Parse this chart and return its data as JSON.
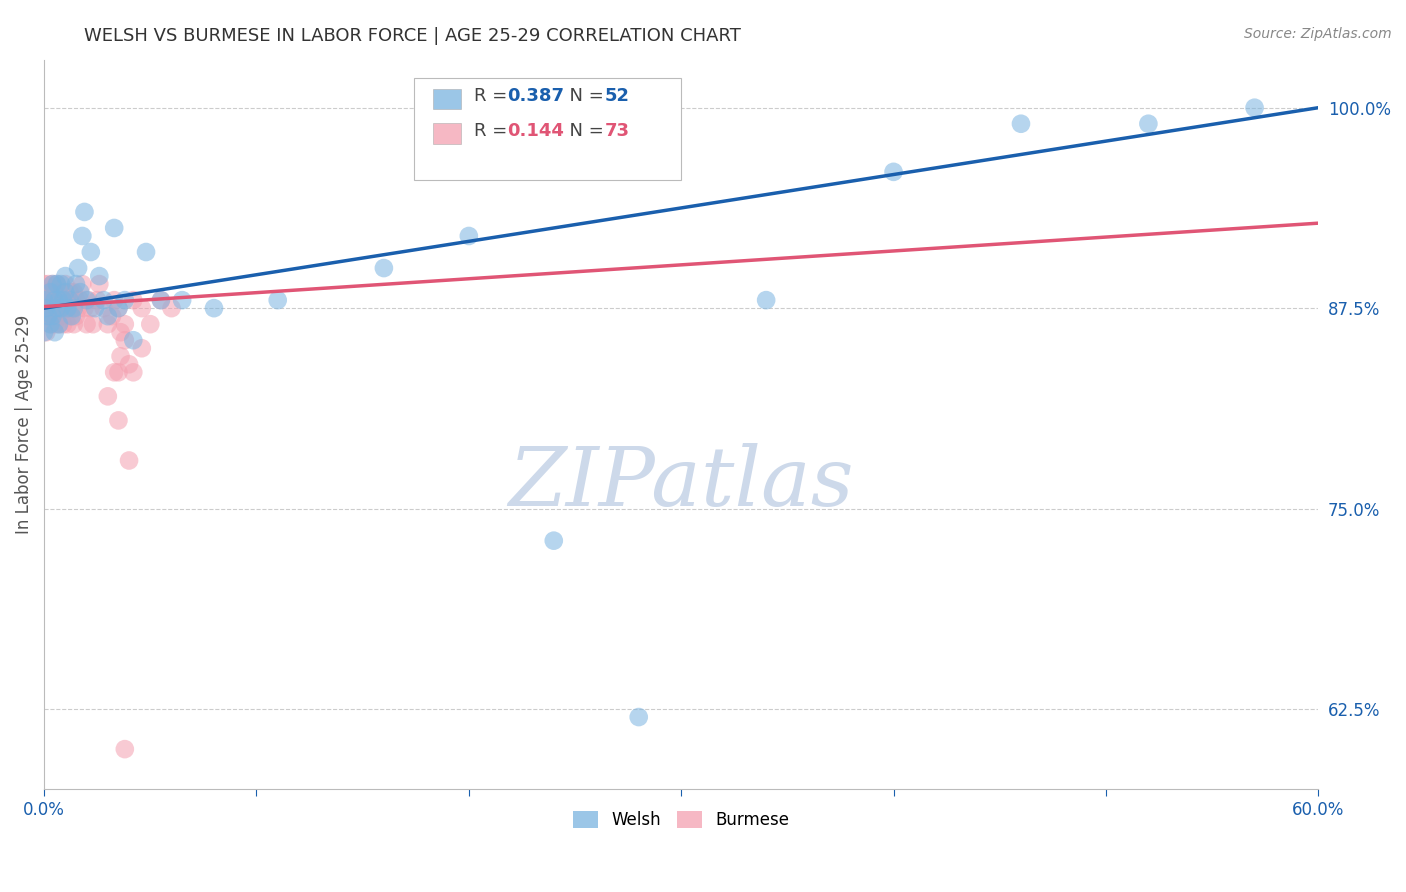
{
  "title": "WELSH VS BURMESE IN LABOR FORCE | AGE 25-29 CORRELATION CHART",
  "source": "Source: ZipAtlas.com",
  "ylabel": "In Labor Force | Age 25-29",
  "xlim": [
    0.0,
    0.6
  ],
  "ylim": [
    0.575,
    1.03
  ],
  "ytick_positions": [
    0.625,
    0.75,
    0.875,
    1.0
  ],
  "ytick_labels": [
    "62.5%",
    "75.0%",
    "87.5%",
    "100.0%"
  ],
  "welsh_color": "#7ab3e0",
  "burmese_color": "#f4a0b0",
  "welsh_line_color": "#1a5fad",
  "burmese_line_color": "#e05575",
  "welsh_R": 0.387,
  "welsh_N": 52,
  "burmese_R": 0.144,
  "burmese_N": 73,
  "welsh_scatter_x": [
    0.0,
    0.0,
    0.001,
    0.002,
    0.003,
    0.003,
    0.004,
    0.004,
    0.005,
    0.005,
    0.006,
    0.006,
    0.007,
    0.007,
    0.008,
    0.008,
    0.009,
    0.01,
    0.01,
    0.011,
    0.012,
    0.013,
    0.014,
    0.015,
    0.016,
    0.017,
    0.018,
    0.019,
    0.02,
    0.022,
    0.024,
    0.026,
    0.028,
    0.03,
    0.033,
    0.035,
    0.038,
    0.042,
    0.048,
    0.055,
    0.065,
    0.08,
    0.11,
    0.16,
    0.2,
    0.24,
    0.28,
    0.34,
    0.4,
    0.46,
    0.52,
    0.57
  ],
  "welsh_scatter_y": [
    0.88,
    0.86,
    0.875,
    0.87,
    0.885,
    0.865,
    0.87,
    0.89,
    0.86,
    0.88,
    0.875,
    0.89,
    0.865,
    0.88,
    0.875,
    0.89,
    0.88,
    0.885,
    0.895,
    0.875,
    0.88,
    0.87,
    0.875,
    0.89,
    0.9,
    0.885,
    0.92,
    0.935,
    0.88,
    0.91,
    0.875,
    0.895,
    0.88,
    0.87,
    0.925,
    0.875,
    0.88,
    0.855,
    0.91,
    0.88,
    0.88,
    0.875,
    0.88,
    0.9,
    0.92,
    0.73,
    0.62,
    0.88,
    0.96,
    0.99,
    0.99,
    1.0
  ],
  "burmese_scatter_x": [
    0.0,
    0.0,
    0.0,
    0.001,
    0.001,
    0.001,
    0.002,
    0.002,
    0.002,
    0.003,
    0.003,
    0.003,
    0.004,
    0.004,
    0.004,
    0.005,
    0.005,
    0.005,
    0.006,
    0.006,
    0.006,
    0.007,
    0.007,
    0.008,
    0.008,
    0.008,
    0.009,
    0.009,
    0.01,
    0.01,
    0.011,
    0.011,
    0.012,
    0.012,
    0.013,
    0.013,
    0.014,
    0.014,
    0.015,
    0.015,
    0.016,
    0.017,
    0.018,
    0.019,
    0.02,
    0.021,
    0.022,
    0.023,
    0.025,
    0.026,
    0.028,
    0.03,
    0.033,
    0.035,
    0.038,
    0.042,
    0.046,
    0.05,
    0.055,
    0.06,
    0.033,
    0.036,
    0.038,
    0.042,
    0.046,
    0.03,
    0.035,
    0.04,
    0.032,
    0.036,
    0.038,
    0.035,
    0.04
  ],
  "burmese_scatter_y": [
    0.88,
    0.87,
    0.89,
    0.86,
    0.875,
    0.885,
    0.87,
    0.88,
    0.89,
    0.875,
    0.865,
    0.885,
    0.87,
    0.88,
    0.89,
    0.875,
    0.865,
    0.885,
    0.87,
    0.88,
    0.89,
    0.875,
    0.865,
    0.885,
    0.87,
    0.88,
    0.875,
    0.865,
    0.88,
    0.89,
    0.875,
    0.865,
    0.885,
    0.87,
    0.88,
    0.875,
    0.865,
    0.885,
    0.87,
    0.88,
    0.875,
    0.88,
    0.89,
    0.875,
    0.865,
    0.88,
    0.875,
    0.865,
    0.88,
    0.89,
    0.875,
    0.865,
    0.88,
    0.875,
    0.865,
    0.88,
    0.875,
    0.865,
    0.88,
    0.875,
    0.835,
    0.845,
    0.855,
    0.835,
    0.85,
    0.82,
    0.805,
    0.84,
    0.87,
    0.86,
    0.6,
    0.835,
    0.78
  ],
  "watermark_text": "ZIPatlas",
  "watermark_color": "#cdd9ea",
  "background_color": "#ffffff",
  "grid_color": "#cccccc",
  "title_color": "#333333",
  "axis_label_color": "#555555",
  "tick_label_color": "#1a5fad",
  "scatter_size": 180,
  "scatter_alpha": 0.55,
  "line_width": 2.5,
  "legend_R_color": "#1a5fad",
  "legend_N_color": "#1a5fad"
}
